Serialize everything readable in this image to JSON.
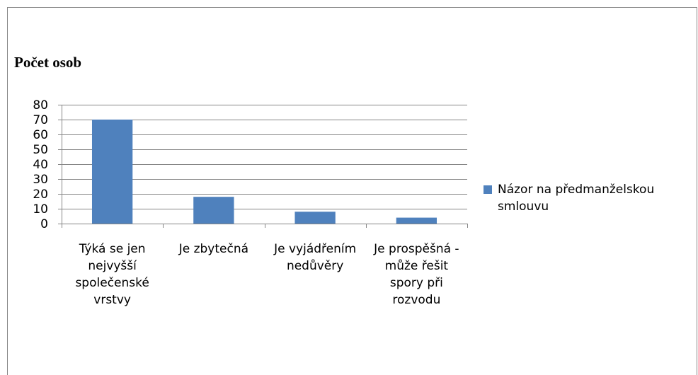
{
  "chart_data": {
    "type": "bar",
    "title": "Počet osob",
    "categories": [
      "Týká se jen nejvyšší společenské vrstvy",
      "Je zbytečná",
      "Je vyjádřením nedůvěry",
      "Je prospěšná - může řešit spory při rozvodu"
    ],
    "series": [
      {
        "name": "Názor na předmanželskou smlouvu",
        "color": "#4f81bd",
        "values": [
          70,
          18,
          8,
          4
        ]
      }
    ],
    "ylim": [
      0,
      80
    ],
    "yticks": [
      0,
      10,
      20,
      30,
      40,
      50,
      60,
      70,
      80
    ],
    "grid": true,
    "legend": "right"
  }
}
